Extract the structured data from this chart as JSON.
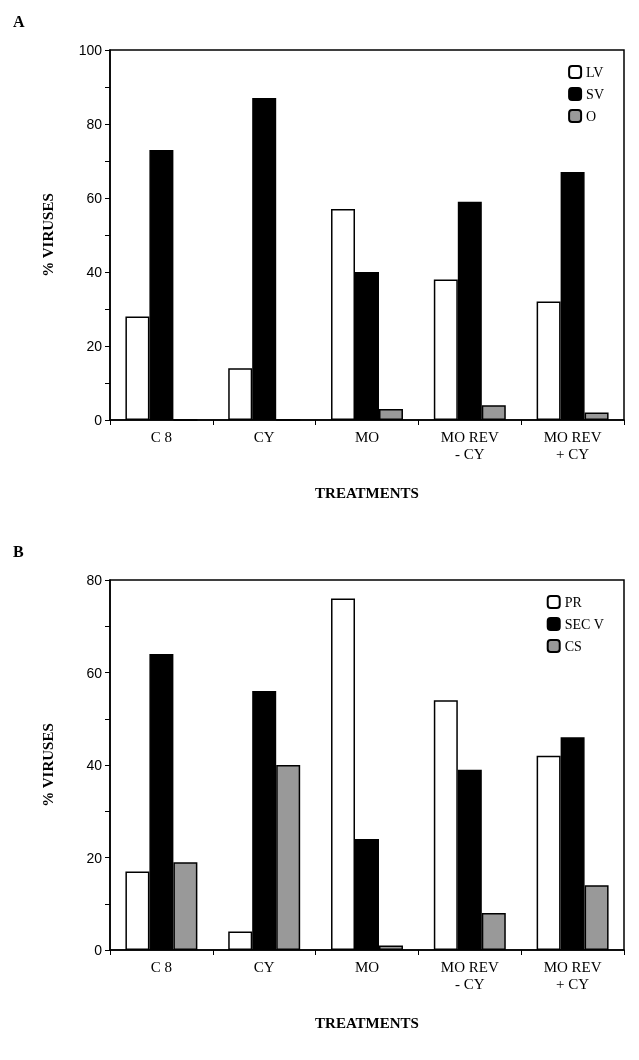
{
  "chart_data": [
    {
      "type": "bar",
      "title": "A",
      "xlabel": "TREATMENTS",
      "ylabel": "% VIRUSES",
      "categories": [
        "C 8",
        "CY",
        "MO",
        "MO REV\n- CY",
        "MO REV\n+ CY"
      ],
      "series": [
        {
          "name": "LV",
          "color": "#ffffff",
          "values": [
            28,
            14,
            57,
            38,
            32
          ]
        },
        {
          "name": "SV",
          "color": "#000000",
          "values": [
            73,
            87,
            40,
            59,
            67
          ]
        },
        {
          "name": "O",
          "color": "#999999",
          "values": [
            0,
            0,
            3,
            4,
            2
          ]
        }
      ],
      "ylim": [
        0,
        100
      ],
      "yticks": [
        0,
        {
          "value": 10,
          "label": null
        },
        20,
        {
          "value": 30,
          "label": null
        },
        40,
        {
          "value": 50,
          "label": null
        },
        60,
        {
          "value": 70,
          "label": null
        },
        80,
        {
          "value": 90,
          "label": null
        },
        100
      ],
      "grid": false,
      "legend": "top right"
    },
    {
      "type": "bar",
      "title": "B",
      "xlabel": "TREATMENTS",
      "ylabel": "% VIRUSES",
      "categories": [
        "C 8",
        "CY",
        "MO",
        "MO REV\n- CY",
        "MO REV\n+ CY"
      ],
      "series": [
        {
          "name": "PR",
          "color": "#ffffff",
          "values": [
            17,
            4,
            76,
            54,
            42
          ]
        },
        {
          "name": "SEC V",
          "color": "#000000",
          "values": [
            64,
            56,
            24,
            39,
            46
          ]
        },
        {
          "name": "CS",
          "color": "#999999",
          "values": [
            19,
            40,
            1,
            8,
            14
          ]
        }
      ],
      "ylim": [
        0,
        80
      ],
      "yticks": [
        0,
        {
          "value": 10,
          "label": null
        },
        20,
        {
          "value": 30,
          "label": null
        },
        40,
        {
          "value": 50,
          "label": null
        },
        60,
        {
          "value": 70,
          "label": null
        },
        80
      ],
      "grid": false,
      "legend": "top right"
    }
  ]
}
